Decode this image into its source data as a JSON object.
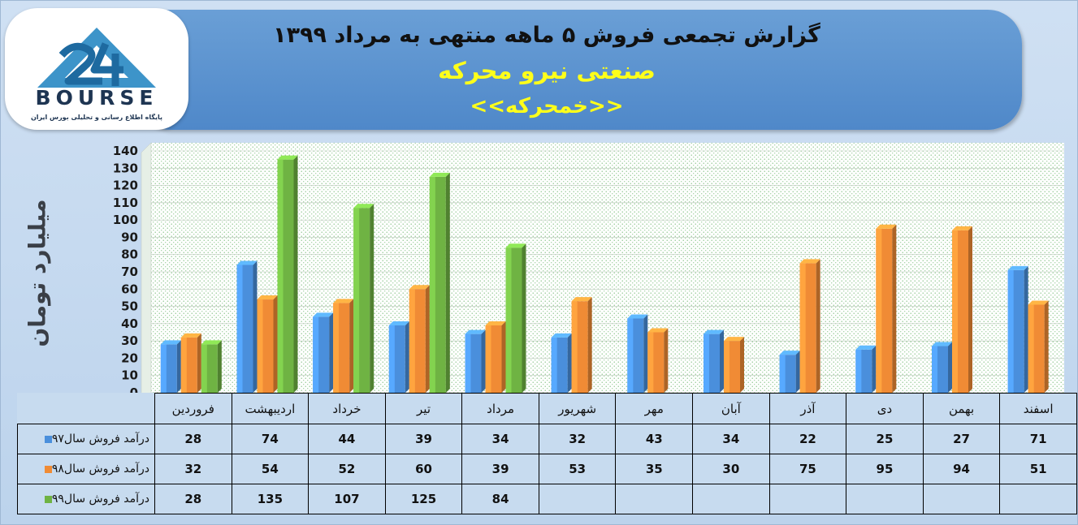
{
  "header": {
    "title_line1": "گزارش تجمعی فروش ۵ ماهه منتهی به مرداد ۱۳۹۹",
    "title_line2": "صنعتی نیرو محرکه",
    "title_line3": "<<خمحرکه>>"
  },
  "logo": {
    "word": "BOURSE",
    "subtitle": "پایگاه اطلاع رسانی و تحلیلی بورس ایران"
  },
  "chart_data": {
    "type": "bar",
    "ylabel": "میلیارد تومان",
    "ylim": [
      0,
      140
    ],
    "ytick_step": 10,
    "grid": true,
    "legend_position": "data-table-left",
    "categories": [
      "فروردین",
      "اردیبهشت",
      "خرداد",
      "تیر",
      "مرداد",
      "شهریور",
      "مهر",
      "آبان",
      "آذر",
      "دی",
      "بهمن",
      "اسفند"
    ],
    "series": [
      {
        "name": "درآمد فروش سال۹۷",
        "color": "#4a8fdc",
        "values": [
          28,
          74,
          44,
          39,
          34,
          32,
          43,
          34,
          22,
          25,
          27,
          71
        ]
      },
      {
        "name": "درآمد فروش سال۹۸",
        "color": "#f08b35",
        "values": [
          32,
          54,
          52,
          60,
          39,
          53,
          35,
          30,
          75,
          95,
          94,
          51
        ]
      },
      {
        "name": "درآمد فروش سال۹۹",
        "color": "#6fb343",
        "values": [
          28,
          135,
          107,
          125,
          84,
          null,
          null,
          null,
          null,
          null,
          null,
          null
        ]
      }
    ]
  }
}
